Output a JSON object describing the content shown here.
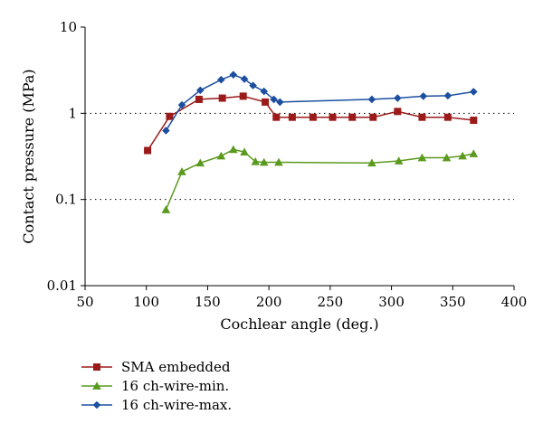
{
  "chart_data": {
    "type": "line",
    "xlabel": "Cochlear angle (deg.)",
    "ylabel": "Contact pressure (MPa)",
    "xlim": [
      50,
      400
    ],
    "ylim": [
      0.01,
      10
    ],
    "yscale": "log",
    "x_ticks": [
      "50",
      "100",
      "150",
      "200",
      "250",
      "300",
      "350",
      "400"
    ],
    "y_ticks": [
      "0.01",
      "0.1",
      "1",
      "10"
    ],
    "grid": "dotted horizontal lines at 0.1 and 1",
    "legend": "below chart, left",
    "series": [
      {
        "name": "SMA embedded",
        "color": "#9b1b1b",
        "marker": "square",
        "points": [
          [
            101,
            0.37
          ],
          [
            119,
            0.92
          ],
          [
            143,
            1.45
          ],
          [
            162,
            1.5
          ],
          [
            179,
            1.58
          ],
          [
            197,
            1.35
          ],
          [
            206,
            0.9
          ],
          [
            219,
            0.9
          ],
          [
            236,
            0.9
          ],
          [
            252,
            0.9
          ],
          [
            268,
            0.9
          ],
          [
            285,
            0.9
          ],
          [
            305,
            1.05
          ],
          [
            325,
            0.9
          ],
          [
            346,
            0.9
          ],
          [
            367,
            0.83
          ]
        ]
      },
      {
        "name": "16 ch-wire-min.",
        "color": "#5a9a1e",
        "marker": "triangle",
        "points": [
          [
            116,
            0.076
          ],
          [
            129,
            0.21
          ],
          [
            144,
            0.265
          ],
          [
            161,
            0.32
          ],
          [
            171,
            0.38
          ],
          [
            180,
            0.355
          ],
          [
            189,
            0.275
          ],
          [
            196,
            0.27
          ],
          [
            208,
            0.27
          ],
          [
            284,
            0.265
          ],
          [
            306,
            0.28
          ],
          [
            325,
            0.305
          ],
          [
            345,
            0.305
          ],
          [
            358,
            0.32
          ],
          [
            367,
            0.34
          ]
        ]
      },
      {
        "name": "16 ch-wire-max.",
        "color": "#1c4fa0",
        "marker": "diamond",
        "points": [
          [
            116,
            0.63
          ],
          [
            129,
            1.25
          ],
          [
            144,
            1.85
          ],
          [
            161,
            2.45
          ],
          [
            171,
            2.8
          ],
          [
            180,
            2.5
          ],
          [
            187,
            2.1
          ],
          [
            196,
            1.8
          ],
          [
            204,
            1.45
          ],
          [
            209,
            1.35
          ],
          [
            284,
            1.45
          ],
          [
            305,
            1.5
          ],
          [
            326,
            1.58
          ],
          [
            346,
            1.6
          ],
          [
            367,
            1.78
          ]
        ]
      }
    ]
  }
}
